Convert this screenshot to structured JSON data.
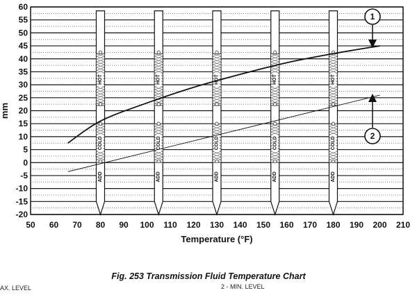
{
  "chart_data": {
    "type": "line",
    "title": "Fig. 253 Transmission Fluid Temperature Chart",
    "xlabel": "Temperature (°F)",
    "ylabel": "mm",
    "xlim": [
      50,
      210
    ],
    "ylim": [
      -20,
      60
    ],
    "x_ticks": [
      50,
      60,
      70,
      80,
      90,
      100,
      110,
      120,
      130,
      140,
      150,
      160,
      170,
      180,
      190,
      200,
      210
    ],
    "y_ticks": [
      60,
      55,
      50,
      45,
      40,
      35,
      30,
      25,
      20,
      15,
      10,
      5,
      0,
      -5,
      -10,
      -15,
      -20
    ],
    "grid": "horizontal",
    "series": [
      {
        "callout": "1",
        "x": [
          66,
          80,
          100,
          120,
          140,
          160,
          180,
          200
        ],
        "y": [
          7.5,
          16,
          23,
          29,
          34,
          38.5,
          42,
          45
        ]
      },
      {
        "callout": "2",
        "x": [
          66,
          200
        ],
        "y": [
          -3.5,
          26
        ]
      }
    ],
    "dipsticks": {
      "x": [
        80,
        105,
        130,
        155,
        180
      ],
      "labels": [
        "ADD",
        "COLD",
        "HOT"
      ]
    }
  },
  "legend": {
    "max_level": "AX. LEVEL",
    "min_level": "2 - MIN. LEVEL"
  }
}
